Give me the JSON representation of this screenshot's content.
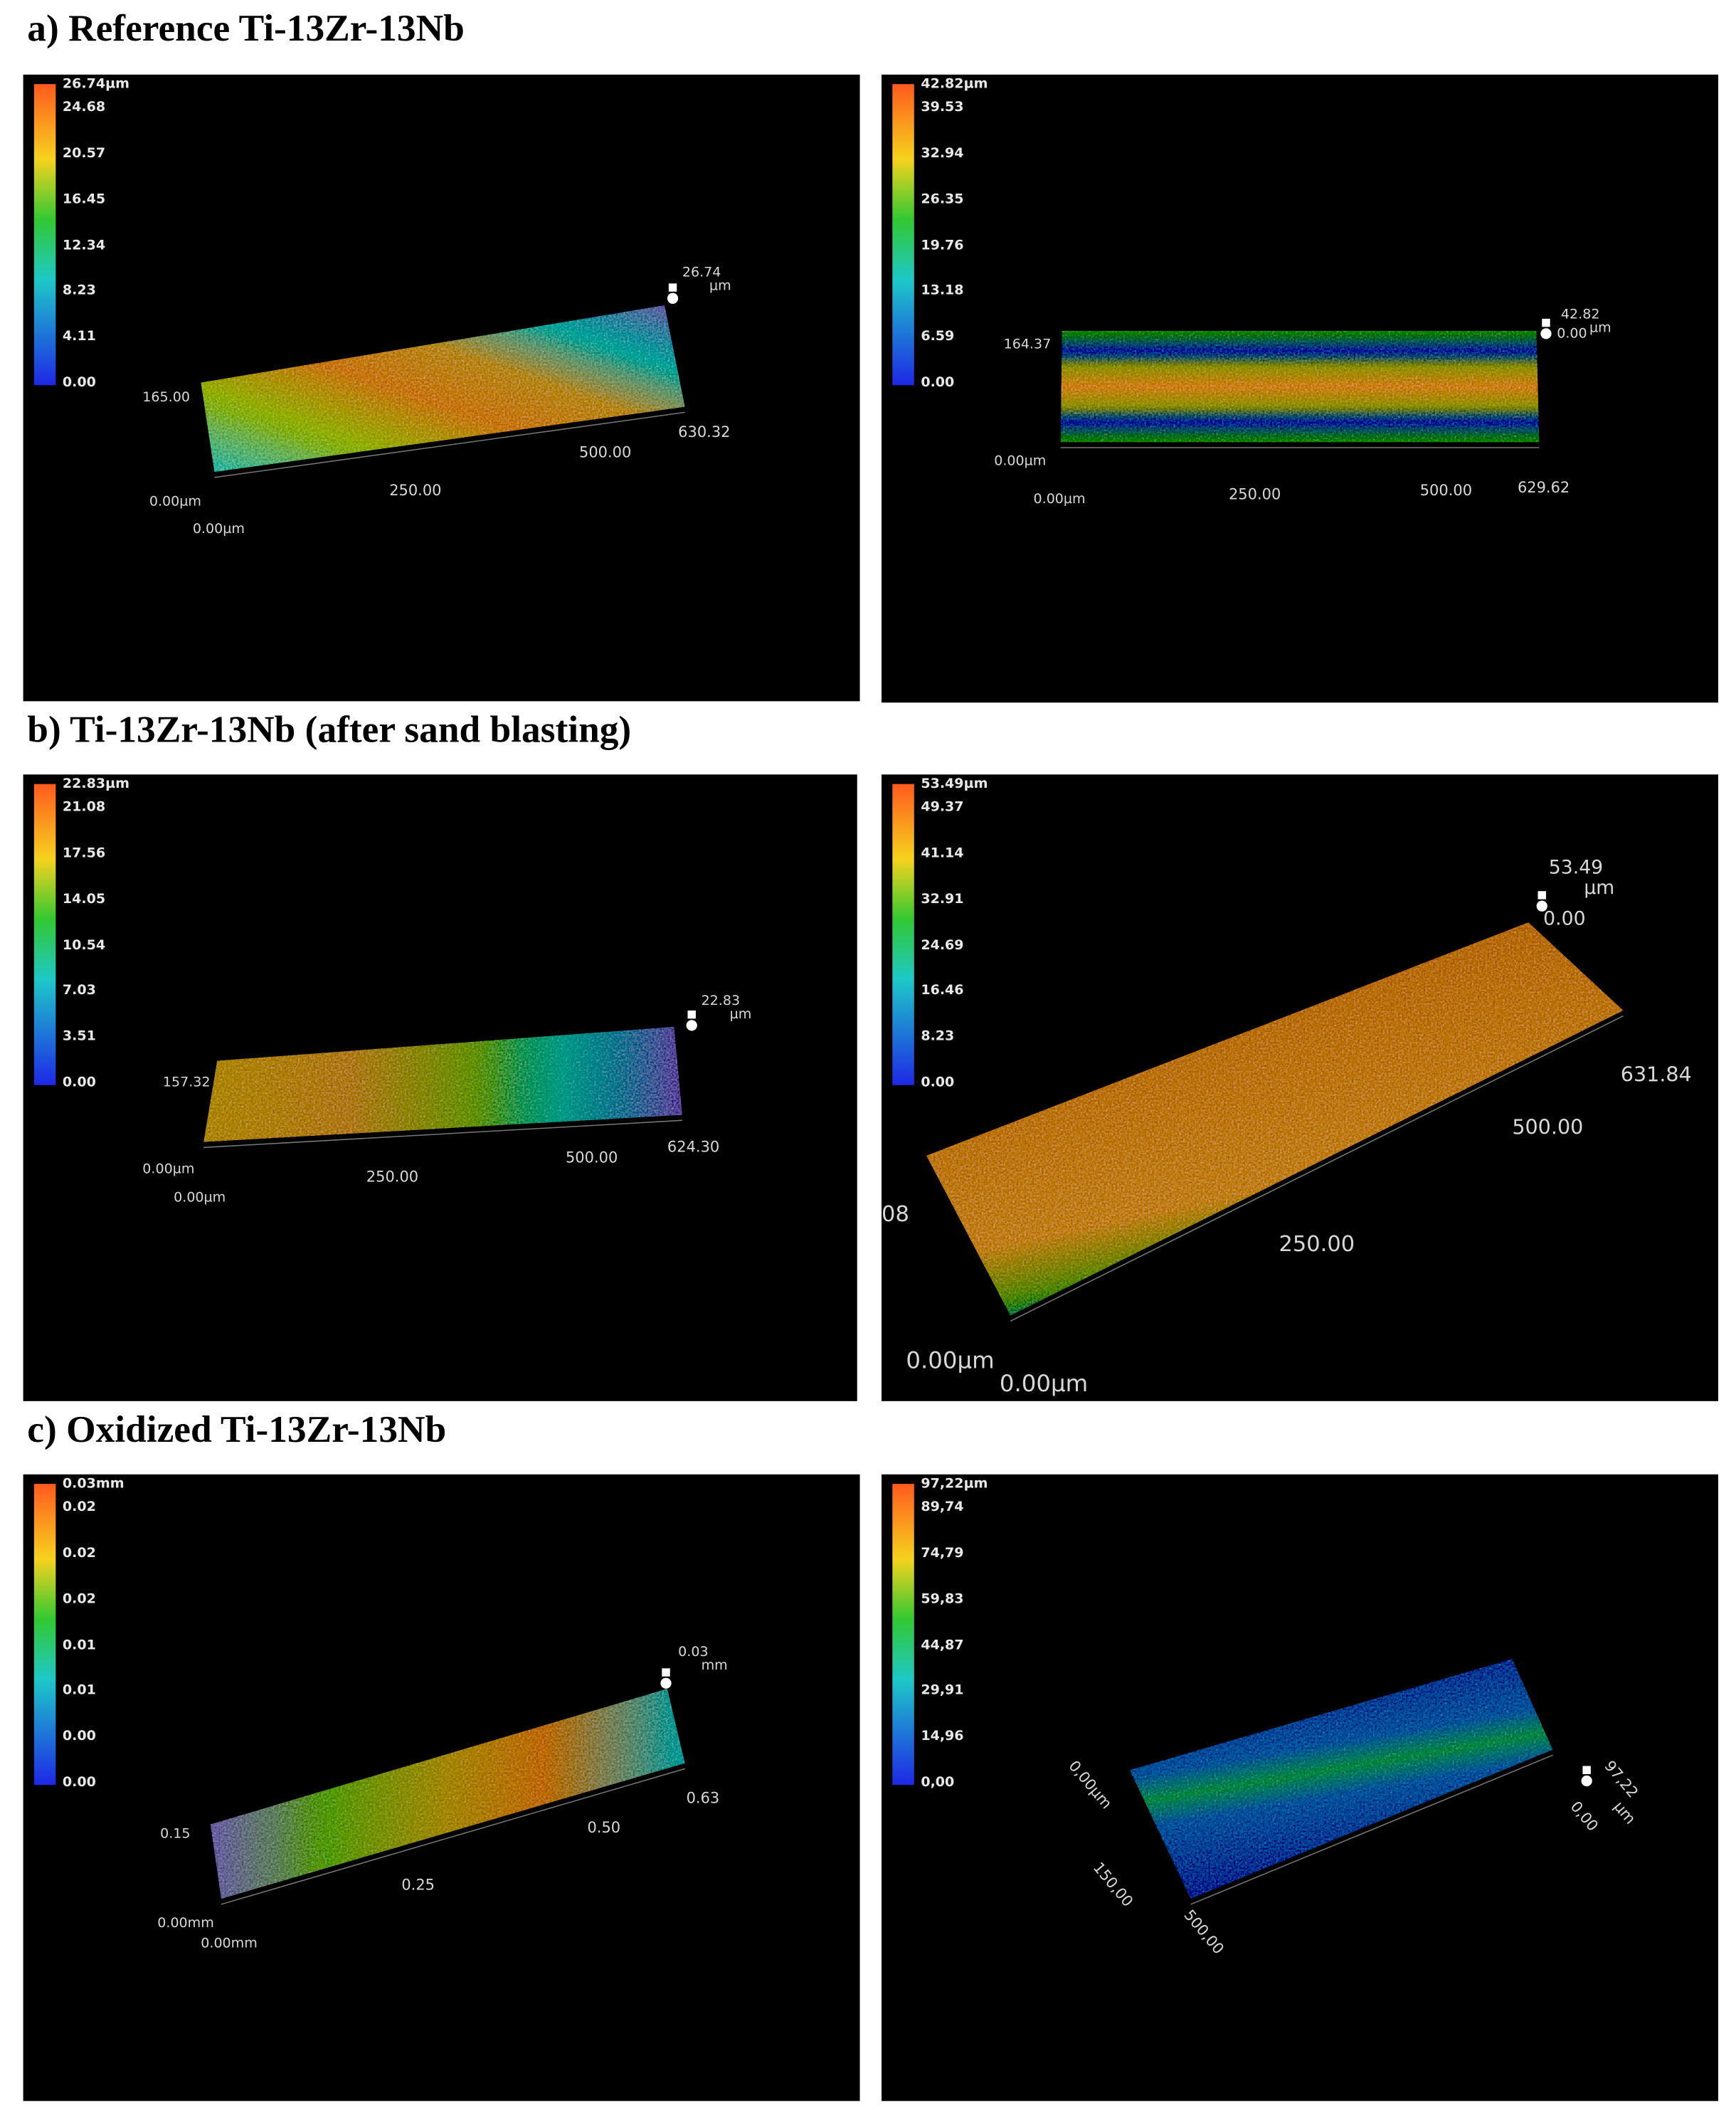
{
  "sections": [
    {
      "heading": "a) Reference Ti-13Zr-13Nb",
      "panels": [
        {
          "scale": [
            "26.74µm",
            "24.68",
            "20.57",
            "16.45",
            "12.34",
            "8.23",
            "4.11",
            "0.00"
          ],
          "labels": [
            "26.74",
            "µm",
            "165.00",
            "630.32",
            "500.00",
            "250.00",
            "0.00µm",
            "0.00µm"
          ]
        },
        {
          "scale": [
            "42.82µm",
            "39.53",
            "32.94",
            "26.35",
            "19.76",
            "13.18",
            "6.59",
            "0.00"
          ],
          "labels": [
            "42.82",
            "0.00",
            "µm",
            "164.37",
            "0.00µm",
            "0.00µm",
            "250.00",
            "500.00",
            "629.62"
          ]
        }
      ]
    },
    {
      "heading": "b) Ti-13Zr-13Nb (after sand blasting)",
      "panels": [
        {
          "scale": [
            "22.83µm",
            "21.08",
            "17.56",
            "14.05",
            "10.54",
            "7.03",
            "3.51",
            "0.00"
          ],
          "labels": [
            "22.83",
            "µm",
            "157.32",
            "624.30",
            "500.00",
            "250.00",
            "0.00µm",
            "0.00µm"
          ]
        },
        {
          "scale": [
            "53.49µm",
            "49.37",
            "41.14",
            "32.91",
            "24.69",
            "16.46",
            "8.23",
            "0.00"
          ],
          "labels": [
            "53.49",
            "µm",
            "0.00",
            "631.84",
            "500.00",
            "250.00",
            "08",
            "0.00µm",
            "0.00µm"
          ]
        }
      ]
    },
    {
      "heading": "c) Oxidized Ti-13Zr-13Nb",
      "panels": [
        {
          "scale": [
            "0.03mm",
            "0.02",
            "0.02",
            "0.02",
            "0.01",
            "0.01",
            "0.00",
            "0.00"
          ],
          "labels": [
            "0.03",
            "mm",
            "0.15",
            "0.63",
            "0.50",
            "0.25",
            "0.00mm",
            "0.00mm"
          ]
        },
        {
          "scale": [
            "97,22µm",
            "89,74",
            "74,79",
            "59,83",
            "44,87",
            "29,91",
            "14,96",
            "0,00"
          ],
          "labels": [
            "0,00µm",
            "150,00",
            "500,00",
            "97,22",
            "µm",
            "0,00"
          ]
        }
      ]
    }
  ]
}
